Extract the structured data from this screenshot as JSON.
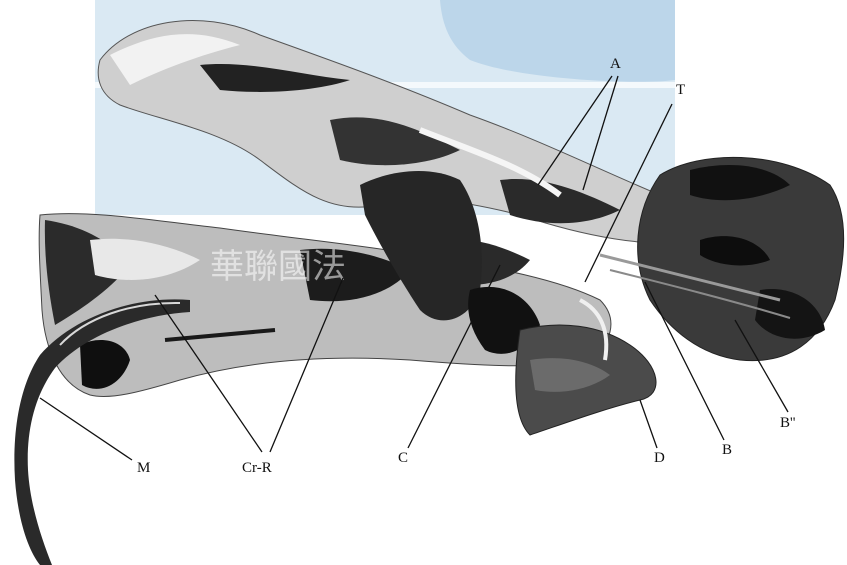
{
  "figure": {
    "labels": {
      "A": "A",
      "T": "T",
      "M": "M",
      "CrR": "Cr-R",
      "C": "C",
      "D": "D",
      "B": "B",
      "B2": "B''"
    },
    "watermark_text": "華聯國法",
    "colors": {
      "watermark_blue": "#cfe2ef",
      "tissue_dark": "#1e1e1e",
      "tissue_mid": "#777777",
      "tissue_light": "#d6d6d6"
    }
  }
}
